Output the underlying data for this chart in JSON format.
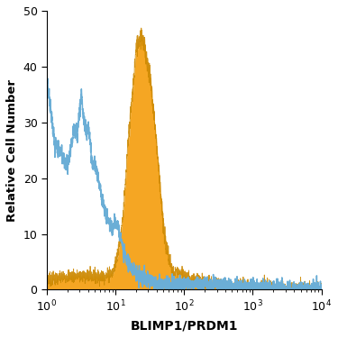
{
  "title": "",
  "xlabel": "BLIMP1/PRDM1",
  "ylabel": "Relative Cell Number",
  "xlim": [
    1.0,
    10000.0
  ],
  "ylim": [
    0,
    50
  ],
  "yticks": [
    0,
    10,
    20,
    30,
    40,
    50
  ],
  "filled_color": "#F5A623",
  "filled_edge_color": "#CC8800",
  "open_color": "#6BAED6",
  "background_color": "#FFFFFF",
  "figsize": [
    3.75,
    3.75
  ],
  "dpi": 100,
  "iso_x": [
    1.0,
    1.05,
    1.1,
    1.2,
    1.3,
    1.5,
    1.7,
    2.0,
    2.2,
    2.5,
    2.8,
    3.0,
    3.2,
    3.5,
    3.8,
    4.0,
    4.2,
    4.5,
    4.8,
    5.0,
    5.5,
    6.0,
    6.5,
    7.0,
    7.5,
    8.0,
    9.0,
    10.0,
    11.0,
    12.0,
    13.0,
    14.0,
    15.0,
    17.0,
    20.0,
    25.0,
    30.0,
    40.0,
    50.0,
    70.0,
    100.0,
    150.0,
    200.0,
    300.0,
    500.0,
    1000.0,
    10000.0
  ],
  "iso_y": [
    38,
    36,
    34,
    30,
    26,
    25,
    24,
    22,
    25,
    29,
    28,
    32,
    35,
    30,
    28,
    29,
    28,
    23,
    22,
    23,
    20,
    18,
    16,
    14,
    13,
    12,
    11,
    12,
    11,
    9,
    7,
    6,
    5,
    4,
    3,
    2,
    2,
    1,
    1,
    1,
    1,
    1,
    1,
    1,
    0.5,
    0.5,
    0
  ],
  "spec_x": [
    1.0,
    1.5,
    2.0,
    2.5,
    3.0,
    3.5,
    4.0,
    4.5,
    5.0,
    5.5,
    6.0,
    6.5,
    7.0,
    7.5,
    8.0,
    8.5,
    9.0,
    9.5,
    10.0,
    11.0,
    12.0,
    13.0,
    14.0,
    15.0,
    16.0,
    17.0,
    18.0,
    19.0,
    20.0,
    22.0,
    24.0,
    26.0,
    28.0,
    30.0,
    32.0,
    34.0,
    36.0,
    38.0,
    40.0,
    42.0,
    44.0,
    46.0,
    48.0,
    50.0,
    55.0,
    60.0,
    65.0,
    70.0,
    75.0,
    80.0,
    90.0,
    100.0,
    120.0,
    150.0,
    200.0,
    300.0,
    500.0,
    1000.0,
    10000.0
  ],
  "spec_y": [
    2,
    2,
    2.5,
    2.5,
    2.5,
    2.5,
    2.5,
    2.5,
    2.5,
    2.5,
    2.5,
    2.5,
    2.5,
    2.5,
    3,
    3,
    3,
    3.5,
    5,
    7,
    10,
    14,
    19,
    25,
    29,
    33,
    36,
    40,
    43,
    45,
    46,
    44,
    42,
    40,
    38,
    35,
    32,
    29,
    26,
    23,
    20,
    17,
    14,
    11,
    8,
    6,
    4,
    3,
    3,
    3,
    3,
    2.5,
    2,
    2,
    1.5,
    1,
    0.5,
    0.5,
    0
  ]
}
